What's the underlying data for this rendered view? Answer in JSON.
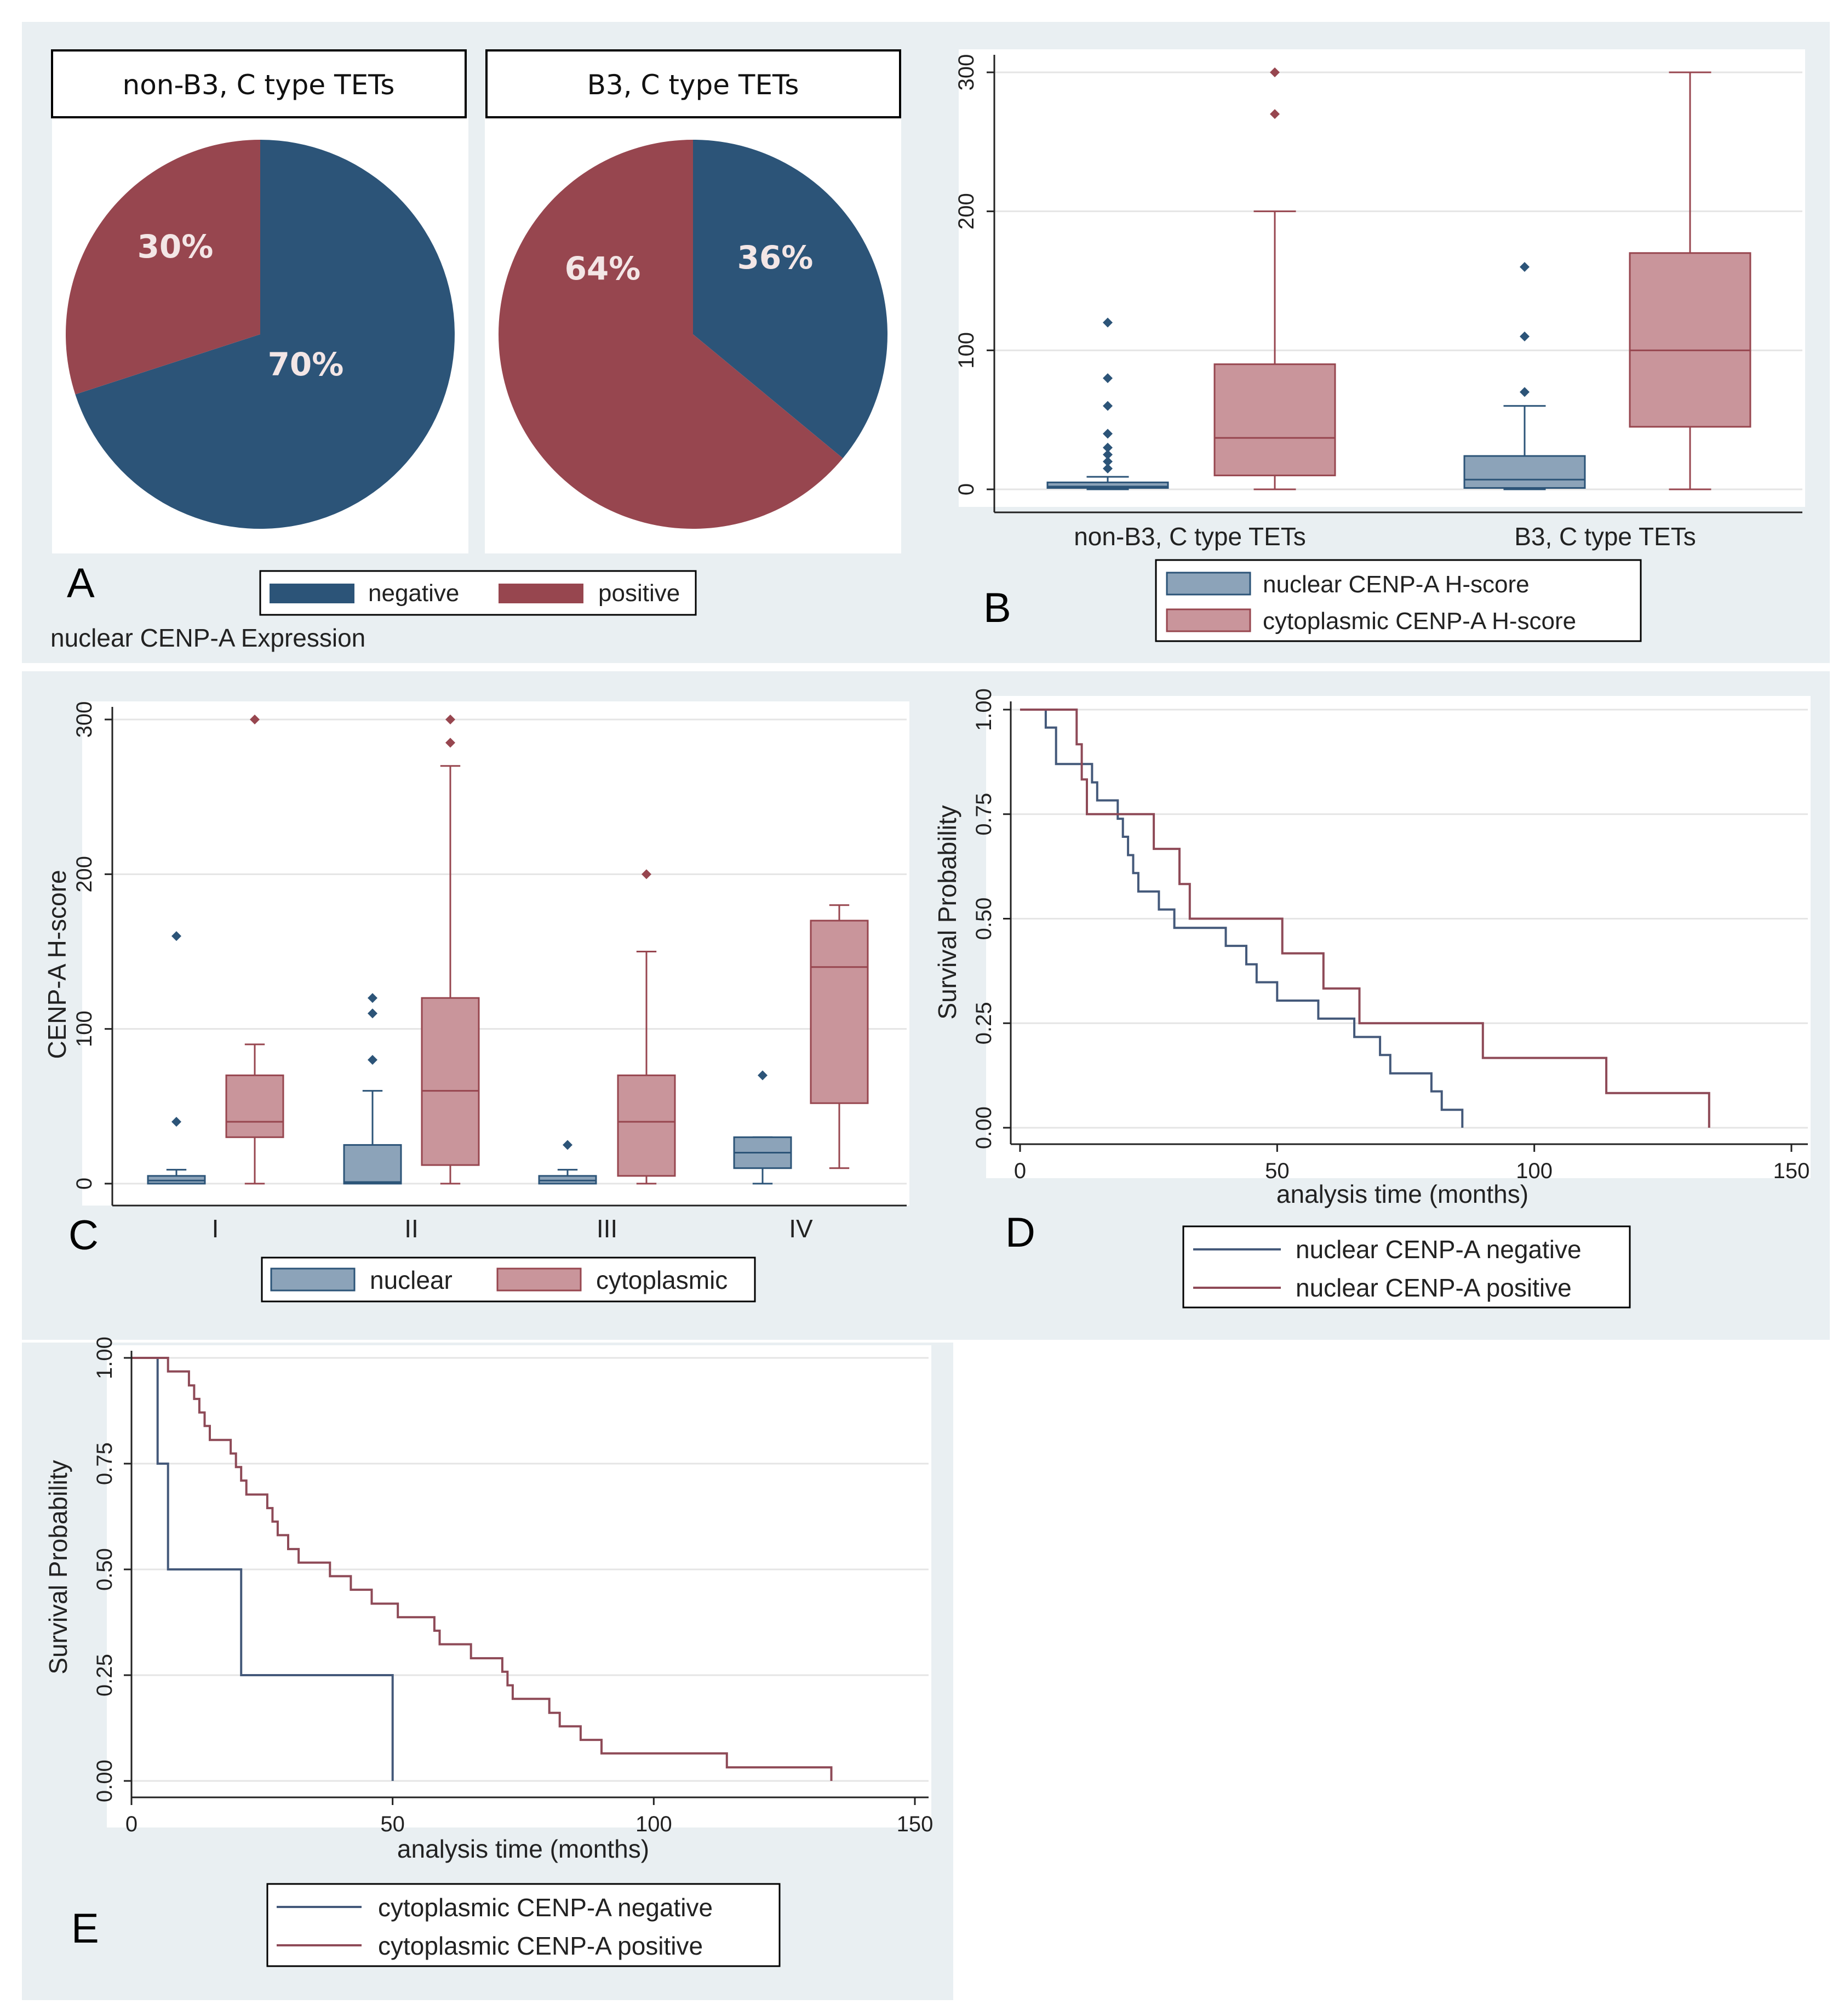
{
  "figure_labels": {
    "a": "A",
    "b": "B",
    "c": "C",
    "d": "D",
    "e": "E"
  },
  "colors": {
    "negative": "#2c5478",
    "positive": "#97464f",
    "nuclear_fill": "#8ca3b9",
    "nuclear_edge": "#2c5478",
    "cyto_fill": "#c9959b",
    "cyto_edge": "#97464f",
    "km_negative": "#44597a",
    "km_positive": "#8e4a57",
    "panel_bg": "#e9eff2",
    "grid": "#e5e5e5"
  },
  "chart_data": [
    {
      "id": "A",
      "type": "pie",
      "title": "nuclear CENP-A Expression",
      "legend": [
        "negative",
        "positive"
      ],
      "pies": [
        {
          "title": "non-B3, C type TETs",
          "slices": [
            {
              "label": "negative",
              "value": 70,
              "text": "70%"
            },
            {
              "label": "positive",
              "value": 30,
              "text": "30%"
            }
          ]
        },
        {
          "title": "B3, C type TETs",
          "slices": [
            {
              "label": "negative",
              "value": 36,
              "text": "36%"
            },
            {
              "label": "positive",
              "value": 64,
              "text": "64%"
            }
          ]
        }
      ]
    },
    {
      "id": "B",
      "type": "box",
      "ylabel": "",
      "ylim": [
        0,
        300
      ],
      "yticks": [
        0,
        100,
        200,
        300
      ],
      "categories": [
        "non-B3, C type TETs",
        "B3, C type TETs"
      ],
      "legend": [
        "nuclear CENP-A H-score",
        "cytoplasmic CENP-A H-score"
      ],
      "groups": [
        {
          "boxes": [
            {
              "series": "nuclear",
              "whislo": 0,
              "q1": 1,
              "med": 2,
              "q3": 5,
              "whishi": 9,
              "outliers": [
                15,
                20,
                25,
                30,
                40,
                60,
                80,
                120
              ]
            },
            {
              "series": "cytoplasmic",
              "whislo": 0,
              "q1": 10,
              "med": 37,
              "q3": 90,
              "whishi": 200,
              "outliers": [
                270,
                300
              ]
            }
          ]
        },
        {
          "boxes": [
            {
              "series": "nuclear",
              "whislo": 0,
              "q1": 1,
              "med": 7,
              "q3": 24,
              "whishi": 60,
              "outliers": [
                70,
                110,
                160
              ]
            },
            {
              "series": "cytoplasmic",
              "whislo": 0,
              "q1": 45,
              "med": 100,
              "q3": 170,
              "whishi": 300,
              "outliers": []
            }
          ]
        }
      ]
    },
    {
      "id": "C",
      "type": "box",
      "ylabel": "CENP-A H-score",
      "ylim": [
        0,
        300
      ],
      "yticks": [
        0,
        100,
        200,
        300
      ],
      "categories": [
        "I",
        "II",
        "III",
        "IV"
      ],
      "legend": [
        "nuclear",
        "cytoplasmic"
      ],
      "groups": [
        {
          "boxes": [
            {
              "series": "nuclear",
              "whislo": 0,
              "q1": 0,
              "med": 2,
              "q3": 5,
              "whishi": 9,
              "outliers": [
                40,
                160
              ]
            },
            {
              "series": "cytoplasmic",
              "whislo": 0,
              "q1": 30,
              "med": 40,
              "q3": 70,
              "whishi": 90,
              "outliers": [
                300
              ]
            }
          ]
        },
        {
          "boxes": [
            {
              "series": "nuclear",
              "whislo": 0,
              "q1": 0,
              "med": 1,
              "q3": 25,
              "whishi": 60,
              "outliers": [
                80,
                110,
                120
              ]
            },
            {
              "series": "cytoplasmic",
              "whislo": 0,
              "q1": 12,
              "med": 60,
              "q3": 120,
              "whishi": 270,
              "outliers": [
                285,
                300
              ]
            }
          ]
        },
        {
          "boxes": [
            {
              "series": "nuclear",
              "whislo": 0,
              "q1": 0,
              "med": 2,
              "q3": 5,
              "whishi": 9,
              "outliers": [
                25
              ]
            },
            {
              "series": "cytoplasmic",
              "whislo": 0,
              "q1": 5,
              "med": 40,
              "q3": 70,
              "whishi": 150,
              "outliers": [
                200
              ]
            }
          ]
        },
        {
          "boxes": [
            {
              "series": "nuclear",
              "whislo": 0,
              "q1": 10,
              "med": 20,
              "q3": 30,
              "whishi": 30,
              "outliers": [
                70
              ]
            },
            {
              "series": "cytoplasmic",
              "whislo": 10,
              "q1": 52,
              "med": 140,
              "q3": 170,
              "whishi": 180,
              "outliers": []
            }
          ]
        }
      ]
    },
    {
      "id": "D",
      "type": "line",
      "ylabel": "Survival Probability",
      "xlabel": "analysis time (months)",
      "xlim": [
        0,
        150
      ],
      "ylim": [
        0,
        1
      ],
      "xticks": [
        0,
        50,
        100,
        150
      ],
      "yticks": [
        "0.00",
        "0.25",
        "0.50",
        "0.75",
        "1.00"
      ],
      "series": [
        {
          "name": "nuclear CENP-A negative",
          "points": [
            [
              0,
              1
            ],
            [
              5,
              1
            ],
            [
              5,
              0.957
            ],
            [
              7,
              0.957
            ],
            [
              7,
              0.87
            ],
            [
              14,
              0.87
            ],
            [
              14,
              0.826
            ],
            [
              15,
              0.826
            ],
            [
              15,
              0.783
            ],
            [
              19,
              0.783
            ],
            [
              19,
              0.739
            ],
            [
              20,
              0.739
            ],
            [
              20,
              0.696
            ],
            [
              21,
              0.696
            ],
            [
              21,
              0.652
            ],
            [
              22,
              0.652
            ],
            [
              22,
              0.609
            ],
            [
              23,
              0.609
            ],
            [
              23,
              0.565
            ],
            [
              27,
              0.565
            ],
            [
              27,
              0.522
            ],
            [
              30,
              0.522
            ],
            [
              30,
              0.478
            ],
            [
              40,
              0.478
            ],
            [
              40,
              0.435
            ],
            [
              44,
              0.435
            ],
            [
              44,
              0.391
            ],
            [
              46,
              0.391
            ],
            [
              46,
              0.348
            ],
            [
              50,
              0.348
            ],
            [
              50,
              0.304
            ],
            [
              58,
              0.304
            ],
            [
              58,
              0.261
            ],
            [
              65,
              0.261
            ],
            [
              65,
              0.217
            ],
            [
              70,
              0.217
            ],
            [
              70,
              0.174
            ],
            [
              72,
              0.174
            ],
            [
              72,
              0.13
            ],
            [
              80,
              0.13
            ],
            [
              80,
              0.087
            ],
            [
              82,
              0.087
            ],
            [
              82,
              0.043
            ],
            [
              86,
              0.043
            ],
            [
              86,
              0
            ]
          ]
        },
        {
          "name": "nuclear CENP-A positive",
          "points": [
            [
              0,
              1
            ],
            [
              11,
              1
            ],
            [
              11,
              0.917
            ],
            [
              12,
              0.917
            ],
            [
              12,
              0.833
            ],
            [
              13,
              0.833
            ],
            [
              13,
              0.75
            ],
            [
              26,
              0.75
            ],
            [
              26,
              0.667
            ],
            [
              31,
              0.667
            ],
            [
              31,
              0.583
            ],
            [
              33,
              0.583
            ],
            [
              33,
              0.5
            ],
            [
              51,
              0.5
            ],
            [
              51,
              0.417
            ],
            [
              59,
              0.417
            ],
            [
              59,
              0.333
            ],
            [
              66,
              0.333
            ],
            [
              66,
              0.25
            ],
            [
              90,
              0.25
            ],
            [
              90,
              0.167
            ],
            [
              114,
              0.167
            ],
            [
              114,
              0.083
            ],
            [
              134,
              0.083
            ],
            [
              134,
              0
            ]
          ]
        }
      ]
    },
    {
      "id": "E",
      "type": "line",
      "ylabel": "Survival Probability",
      "xlabel": "analysis time (months)",
      "xlim": [
        0,
        150
      ],
      "ylim": [
        0,
        1
      ],
      "xticks": [
        0,
        50,
        100,
        150
      ],
      "yticks": [
        "0.00",
        "0.25",
        "0.50",
        "0.75",
        "1.00"
      ],
      "series": [
        {
          "name": "cytoplasmic CENP-A negative",
          "points": [
            [
              0,
              1
            ],
            [
              5,
              1
            ],
            [
              5,
              0.75
            ],
            [
              7,
              0.75
            ],
            [
              7,
              0.5
            ],
            [
              21,
              0.5
            ],
            [
              21,
              0.25
            ],
            [
              50,
              0.25
            ],
            [
              50,
              0
            ]
          ]
        },
        {
          "name": "cytoplasmic CENP-A positive",
          "points": [
            [
              0,
              1
            ],
            [
              7,
              1
            ],
            [
              7,
              0.968
            ],
            [
              11,
              0.968
            ],
            [
              11,
              0.935
            ],
            [
              12,
              0.935
            ],
            [
              12,
              0.903
            ],
            [
              13,
              0.903
            ],
            [
              13,
              0.871
            ],
            [
              14,
              0.871
            ],
            [
              14,
              0.839
            ],
            [
              15,
              0.839
            ],
            [
              15,
              0.806
            ],
            [
              19,
              0.806
            ],
            [
              19,
              0.774
            ],
            [
              20,
              0.774
            ],
            [
              20,
              0.742
            ],
            [
              21,
              0.742
            ],
            [
              21,
              0.71
            ],
            [
              22,
              0.71
            ],
            [
              22,
              0.677
            ],
            [
              26,
              0.677
            ],
            [
              26,
              0.645
            ],
            [
              27,
              0.645
            ],
            [
              27,
              0.613
            ],
            [
              28,
              0.613
            ],
            [
              28,
              0.581
            ],
            [
              30,
              0.581
            ],
            [
              30,
              0.548
            ],
            [
              32,
              0.548
            ],
            [
              32,
              0.516
            ],
            [
              38,
              0.516
            ],
            [
              38,
              0.484
            ],
            [
              42,
              0.484
            ],
            [
              42,
              0.452
            ],
            [
              46,
              0.452
            ],
            [
              46,
              0.419
            ],
            [
              51,
              0.419
            ],
            [
              51,
              0.387
            ],
            [
              58,
              0.387
            ],
            [
              58,
              0.355
            ],
            [
              59,
              0.355
            ],
            [
              59,
              0.323
            ],
            [
              65,
              0.323
            ],
            [
              65,
              0.29
            ],
            [
              71,
              0.29
            ],
            [
              71,
              0.258
            ],
            [
              72,
              0.258
            ],
            [
              72,
              0.226
            ],
            [
              73,
              0.226
            ],
            [
              73,
              0.194
            ],
            [
              80,
              0.194
            ],
            [
              80,
              0.161
            ],
            [
              82,
              0.161
            ],
            [
              82,
              0.129
            ],
            [
              86,
              0.129
            ],
            [
              86,
              0.097
            ],
            [
              90,
              0.097
            ],
            [
              90,
              0.065
            ],
            [
              114,
              0.065
            ],
            [
              114,
              0.032
            ],
            [
              134,
              0.032
            ],
            [
              134,
              0
            ]
          ]
        }
      ]
    }
  ]
}
